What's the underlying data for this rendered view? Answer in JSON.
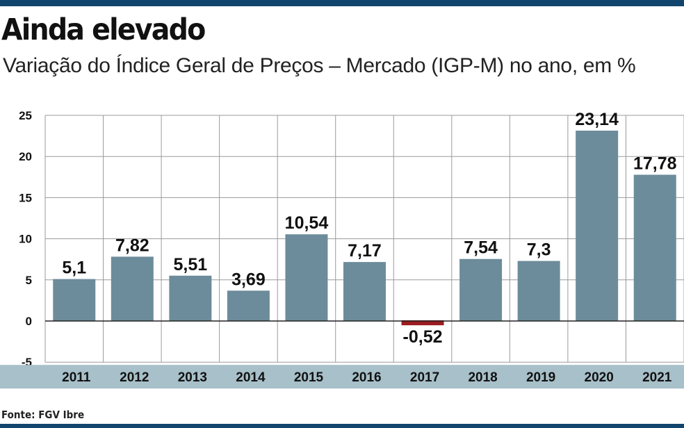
{
  "title": "Ainda elevado",
  "subtitle": "Variação do Índice Geral de Preços – Mercado (IGP-M) no ano, em %",
  "source": "Fonte: FGV Ibre",
  "colors": {
    "bar": "#6d8c9b",
    "negative_bar": "#9b1d21",
    "x_band": "#a7c0c9",
    "frame": "#11456e",
    "grid": "#9a9a9a"
  },
  "chart_data": {
    "type": "bar",
    "title": "Ainda elevado",
    "subtitle": "Variação do Índice Geral de Preços – Mercado (IGP-M) no ano, em %",
    "xlabel": "",
    "ylabel": "",
    "categories": [
      "2011",
      "2012",
      "2013",
      "2014",
      "2015",
      "2016",
      "2017",
      "2018",
      "2019",
      "2020",
      "2021"
    ],
    "values": [
      5.1,
      7.82,
      5.51,
      3.69,
      10.54,
      7.17,
      -0.52,
      7.54,
      7.3,
      23.14,
      17.78
    ],
    "value_labels": [
      "5,1",
      "7,82",
      "5,51",
      "3,69",
      "10,54",
      "7,17",
      "-0,52",
      "7,54",
      "7,3",
      "23,14",
      "17,78"
    ],
    "yticks": [
      "25",
      "20",
      "15",
      "10",
      "5",
      "0",
      "-5"
    ],
    "ytick_values": [
      25,
      20,
      15,
      10,
      5,
      0,
      -5
    ],
    "ylim": [
      -5,
      25
    ],
    "grid": true,
    "legend": "none"
  }
}
